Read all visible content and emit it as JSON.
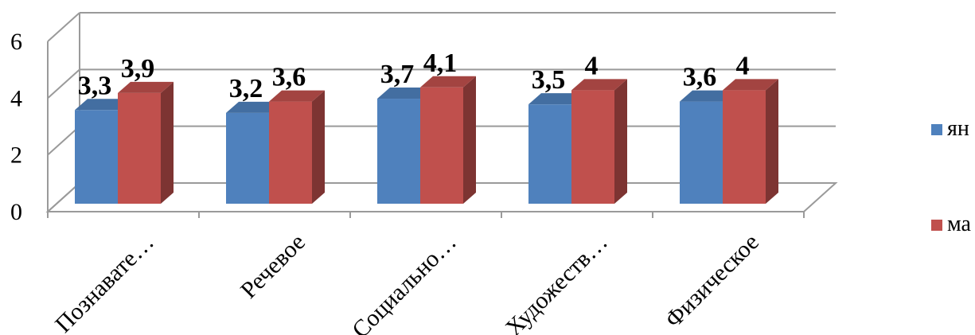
{
  "chart_data": {
    "type": "bar",
    "title": "",
    "xlabel": "",
    "ylabel": "",
    "ylim": [
      0,
      6
    ],
    "yticks": [
      0,
      2,
      4,
      6
    ],
    "categories": [
      "Познавате…",
      "Речевое",
      "Социально…",
      "Художеств…",
      "Физическое"
    ],
    "series": [
      {
        "name": "ян",
        "color": "#4F81BD",
        "values": [
          3.3,
          3.2,
          3.7,
          3.5,
          3.6
        ],
        "labels": [
          "3,3",
          "3,2",
          "3,7",
          "3,5",
          "3,6"
        ]
      },
      {
        "name": "ма",
        "color": "#C0504D",
        "values": [
          3.9,
          3.6,
          4.1,
          4.0,
          4.0
        ],
        "labels": [
          "3,9",
          "3,6",
          "4,1",
          "4",
          "4"
        ]
      }
    ],
    "grid": true,
    "legend_position": "right"
  }
}
